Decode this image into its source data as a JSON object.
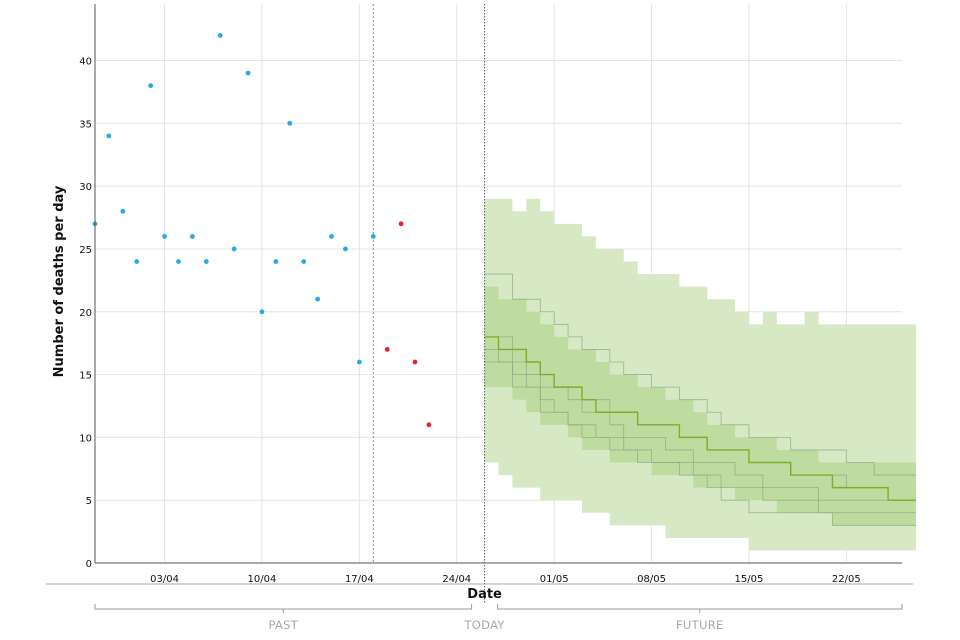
{
  "chart_data": {
    "type": "scatter",
    "xlabel": "Date",
    "ylabel": "Number of deaths per day",
    "x_ticks": [
      "03/04",
      "10/04",
      "17/04",
      "24/04",
      "01/05",
      "08/05",
      "15/05",
      "22/05"
    ],
    "y_ticks": [
      0,
      5,
      10,
      15,
      20,
      25,
      30,
      35,
      40
    ],
    "ylim": [
      0,
      44.5
    ],
    "x_range": [
      "2020-03-29",
      "2020-05-26"
    ],
    "grid": true,
    "markers": {
      "past_end": "2020-04-18",
      "today": "2020-04-26"
    },
    "periods": {
      "past": "PAST",
      "today": "TODAY",
      "future": "FUTURE"
    },
    "series": [
      {
        "kind": "points",
        "color": "#29abe2",
        "x": [
          "2020-03-29",
          "2020-03-30",
          "2020-03-31",
          "2020-04-01",
          "2020-04-02",
          "2020-04-03",
          "2020-04-04",
          "2020-04-05",
          "2020-04-06",
          "2020-04-07",
          "2020-04-08",
          "2020-04-09",
          "2020-04-10",
          "2020-04-11",
          "2020-04-12",
          "2020-04-13",
          "2020-04-14",
          "2020-04-15",
          "2020-04-16",
          "2020-04-17",
          "2020-04-18"
        ],
        "y": [
          27,
          34,
          28,
          24,
          38,
          26,
          24,
          26,
          24,
          42,
          25,
          39,
          20,
          24,
          35,
          24,
          21,
          26,
          25,
          16,
          26
        ]
      },
      {
        "kind": "points",
        "color": "#e8212b",
        "x": [
          "2020-04-19",
          "2020-04-20",
          "2020-04-21",
          "2020-04-22"
        ],
        "y": [
          17,
          27,
          16,
          11
        ]
      },
      {
        "kind": "band",
        "color": "#d7e8c4",
        "x_start": "2020-04-26",
        "upper": [
          29,
          29,
          28,
          29,
          28,
          27,
          27,
          26,
          25,
          25,
          24,
          23,
          23,
          23,
          22,
          22,
          21,
          21,
          20,
          19,
          20,
          19,
          19,
          20,
          19,
          19,
          19,
          19,
          19,
          19,
          19
        ],
        "lower": [
          8,
          7,
          6,
          6,
          5,
          5,
          5,
          4,
          4,
          3,
          3,
          3,
          3,
          2,
          2,
          2,
          2,
          2,
          2,
          1,
          1,
          1,
          1,
          1,
          1,
          1,
          1,
          1,
          1,
          1,
          1
        ]
      },
      {
        "kind": "band",
        "color": "#bedc9f",
        "x_start": "2020-04-26",
        "upper": [
          22,
          21,
          21,
          20,
          19,
          18,
          17,
          17,
          16,
          15,
          15,
          14,
          14,
          13,
          13,
          12,
          11,
          11,
          10,
          10,
          10,
          9,
          9,
          9,
          8,
          8,
          8,
          8,
          8,
          8,
          8
        ],
        "lower": [
          14,
          14,
          13,
          12,
          11,
          11,
          10,
          9,
          9,
          8,
          8,
          8,
          7,
          7,
          7,
          6,
          6,
          6,
          5,
          5,
          5,
          4,
          4,
          4,
          4,
          3,
          3,
          3,
          3,
          3,
          3
        ]
      },
      {
        "kind": "lines",
        "color": "#8fa886",
        "x_start": "2020-04-26",
        "paths": [
          [
            23,
            23,
            21,
            21,
            20,
            19,
            18,
            17,
            17,
            16,
            15,
            15,
            14,
            14,
            13,
            13,
            12,
            11,
            11,
            10,
            10,
            10,
            9,
            9,
            9,
            9,
            8,
            8,
            7,
            7,
            7
          ],
          [
            18,
            18,
            16,
            15,
            14,
            14,
            13,
            12,
            12,
            11,
            10,
            10,
            10,
            9,
            9,
            8,
            8,
            8,
            7,
            7,
            6,
            6,
            6,
            6,
            5,
            5,
            5,
            5,
            5,
            5,
            5
          ],
          [
            17,
            16,
            14,
            14,
            13,
            12,
            11,
            11,
            10,
            10,
            9,
            9,
            8,
            8,
            8,
            7,
            7,
            6,
            6,
            6,
            5,
            5,
            5,
            5,
            4,
            4,
            4,
            4,
            4,
            4,
            4
          ],
          [
            16,
            16,
            15,
            14,
            12,
            12,
            11,
            10,
            10,
            9,
            9,
            8,
            8,
            8,
            7,
            7,
            6,
            5,
            5,
            4,
            4,
            4,
            4,
            4,
            4,
            3,
            3,
            3,
            3,
            3,
            3
          ],
          [
            18,
            17,
            17,
            16,
            15,
            14,
            14,
            13,
            13,
            12,
            12,
            11,
            11,
            11,
            10,
            10,
            9,
            9,
            9,
            8,
            8,
            8,
            7,
            7,
            7,
            7,
            6,
            6,
            6,
            5,
            5
          ]
        ]
      },
      {
        "kind": "line",
        "color": "#7ab02d",
        "x_start": "2020-04-26",
        "y": [
          18,
          17,
          17,
          16,
          15,
          14,
          14,
          13,
          12,
          12,
          12,
          11,
          11,
          11,
          10,
          10,
          9,
          9,
          9,
          8,
          8,
          8,
          7,
          7,
          7,
          6,
          6,
          6,
          6,
          5,
          5
        ]
      }
    ]
  }
}
